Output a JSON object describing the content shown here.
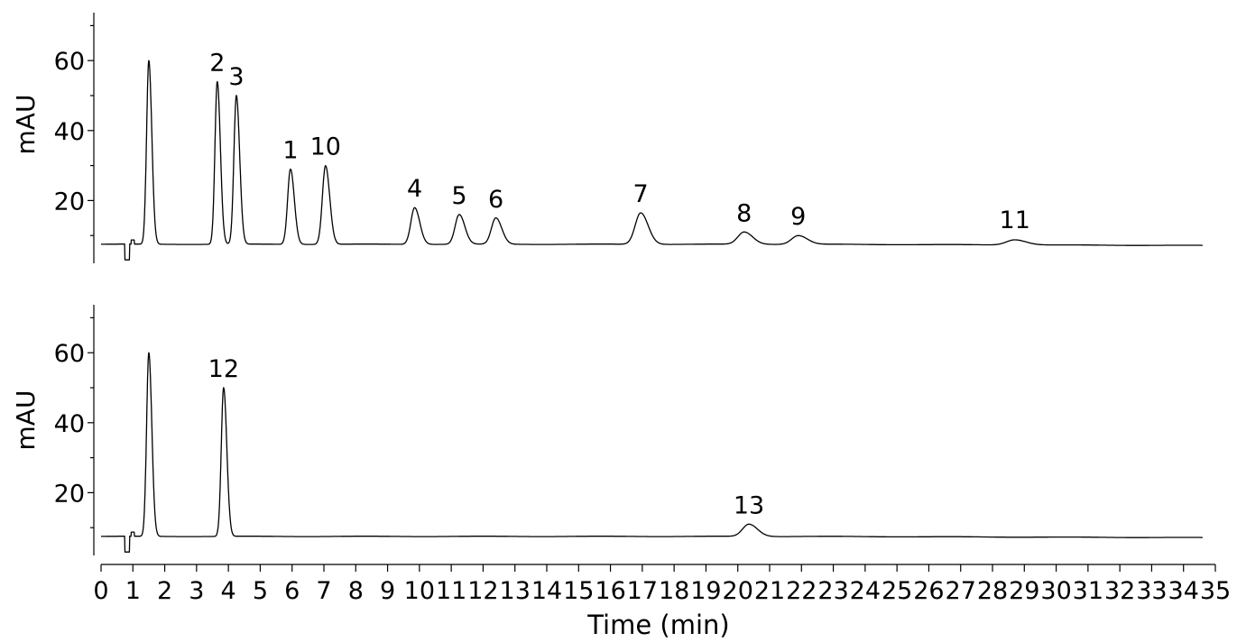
{
  "chart_data": [
    {
      "type": "line",
      "title": "",
      "xlabel": "",
      "ylabel": "mAU",
      "xlim": [
        0,
        35
      ],
      "ylim": [
        0,
        75
      ],
      "y_ticks": [
        "20",
        "40",
        "60"
      ],
      "y_minor_ticks": [
        10,
        30,
        50,
        70
      ],
      "baseline": 7.5,
      "series": [
        {
          "peaks": [
            {
              "label": "",
              "x": 1.5,
              "height": 60
            },
            {
              "label": "2",
              "x": 3.65,
              "height": 54
            },
            {
              "label": "3",
              "x": 4.25,
              "height": 50
            },
            {
              "label": "1",
              "x": 5.95,
              "height": 29
            },
            {
              "label": "10",
              "x": 7.05,
              "height": 30
            },
            {
              "label": "4",
              "x": 9.85,
              "height": 18
            },
            {
              "label": "5",
              "x": 11.25,
              "height": 16
            },
            {
              "label": "6",
              "x": 12.4,
              "height": 15
            },
            {
              "label": "7",
              "x": 16.95,
              "height": 16.5
            },
            {
              "label": "8",
              "x": 20.2,
              "height": 11
            },
            {
              "label": "9",
              "x": 21.9,
              "height": 10
            },
            {
              "label": "11",
              "x": 28.7,
              "height": 9
            }
          ]
        }
      ]
    },
    {
      "type": "line",
      "title": "",
      "xlabel": "Time (min)",
      "ylabel": "mAU",
      "xlim": [
        0,
        35
      ],
      "ylim": [
        0,
        75
      ],
      "y_ticks": [
        "20",
        "40",
        "60"
      ],
      "y_minor_ticks": [
        10,
        30,
        50,
        70
      ],
      "baseline": 7.5,
      "series": [
        {
          "peaks": [
            {
              "label": "",
              "x": 1.5,
              "height": 60
            },
            {
              "label": "12",
              "x": 3.85,
              "height": 50
            },
            {
              "label": "13",
              "x": 20.35,
              "height": 11
            }
          ]
        }
      ]
    }
  ],
  "x_ticks": [
    "0",
    "1",
    "2",
    "3",
    "4",
    "5",
    "6",
    "7",
    "8",
    "9",
    "10",
    "11",
    "12",
    "13",
    "14",
    "15",
    "16",
    "17",
    "18",
    "19",
    "20",
    "21",
    "22",
    "23",
    "24",
    "25",
    "26",
    "27",
    "28",
    "29",
    "30",
    "31",
    "32",
    "33",
    "34",
    "35"
  ]
}
